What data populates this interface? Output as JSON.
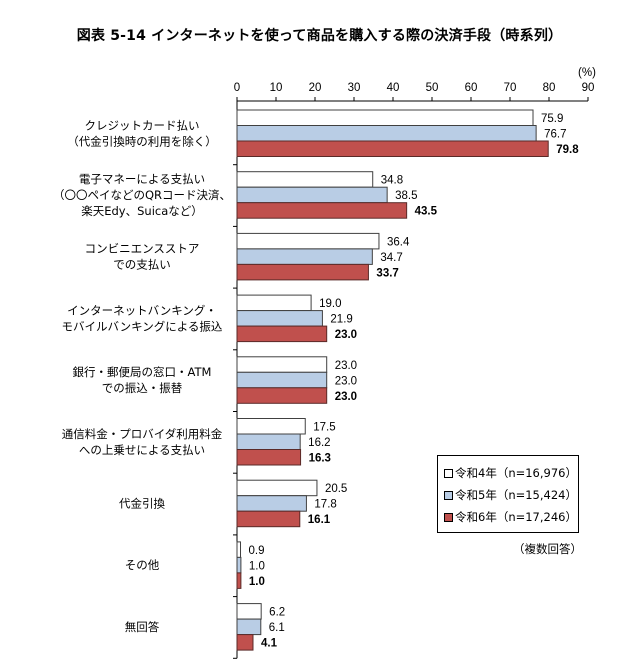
{
  "chart_data": {
    "type": "bar",
    "orientation": "horizontal",
    "title": "図表 5-14 インターネットを使って商品を購入する際の決済手段（時系列）",
    "unit_label": "(%)",
    "xlim": [
      0,
      90
    ],
    "xticks": [
      0,
      10,
      20,
      30,
      40,
      50,
      60,
      70,
      80,
      90
    ],
    "grid": false,
    "legend_position": "bottom-right",
    "note": "（複数回答）",
    "categories": [
      [
        "クレジットカード払い",
        "（代金引換時の利用を除く）"
      ],
      [
        "電子マネーによる支払い",
        "（〇〇ペイなどのQRコード決済、",
        "楽天Edy、Suicaなど）"
      ],
      [
        "コンビニエンスストア",
        "での支払い"
      ],
      [
        "インターネットバンキング・",
        "モバイルバンキングによる振込"
      ],
      [
        "銀行・郵便局の窓口・ATM",
        "での振込・振替"
      ],
      [
        "通信料金・プロバイダ利用料金",
        "への上乗せによる支払い"
      ],
      [
        "代金引換"
      ],
      [
        "その他"
      ],
      [
        "無回答"
      ]
    ],
    "series": [
      {
        "name": "令和4年",
        "legend": "令和4年（n=16,976）",
        "color": "#ffffff",
        "bold": false,
        "values": [
          75.9,
          34.8,
          36.4,
          19.0,
          23.0,
          17.5,
          20.5,
          0.9,
          6.2
        ]
      },
      {
        "name": "令和5年",
        "legend": "令和5年（n=15,424）",
        "color": "#b9cde5",
        "bold": false,
        "values": [
          76.7,
          38.5,
          34.7,
          21.9,
          23.0,
          16.2,
          17.8,
          1.0,
          6.1
        ]
      },
      {
        "name": "令和6年",
        "legend": "令和6年（n=17,246）",
        "color": "#c0504d",
        "bold": true,
        "values": [
          79.8,
          43.5,
          33.7,
          23.0,
          23.0,
          16.3,
          16.1,
          1.0,
          4.1
        ]
      }
    ]
  }
}
